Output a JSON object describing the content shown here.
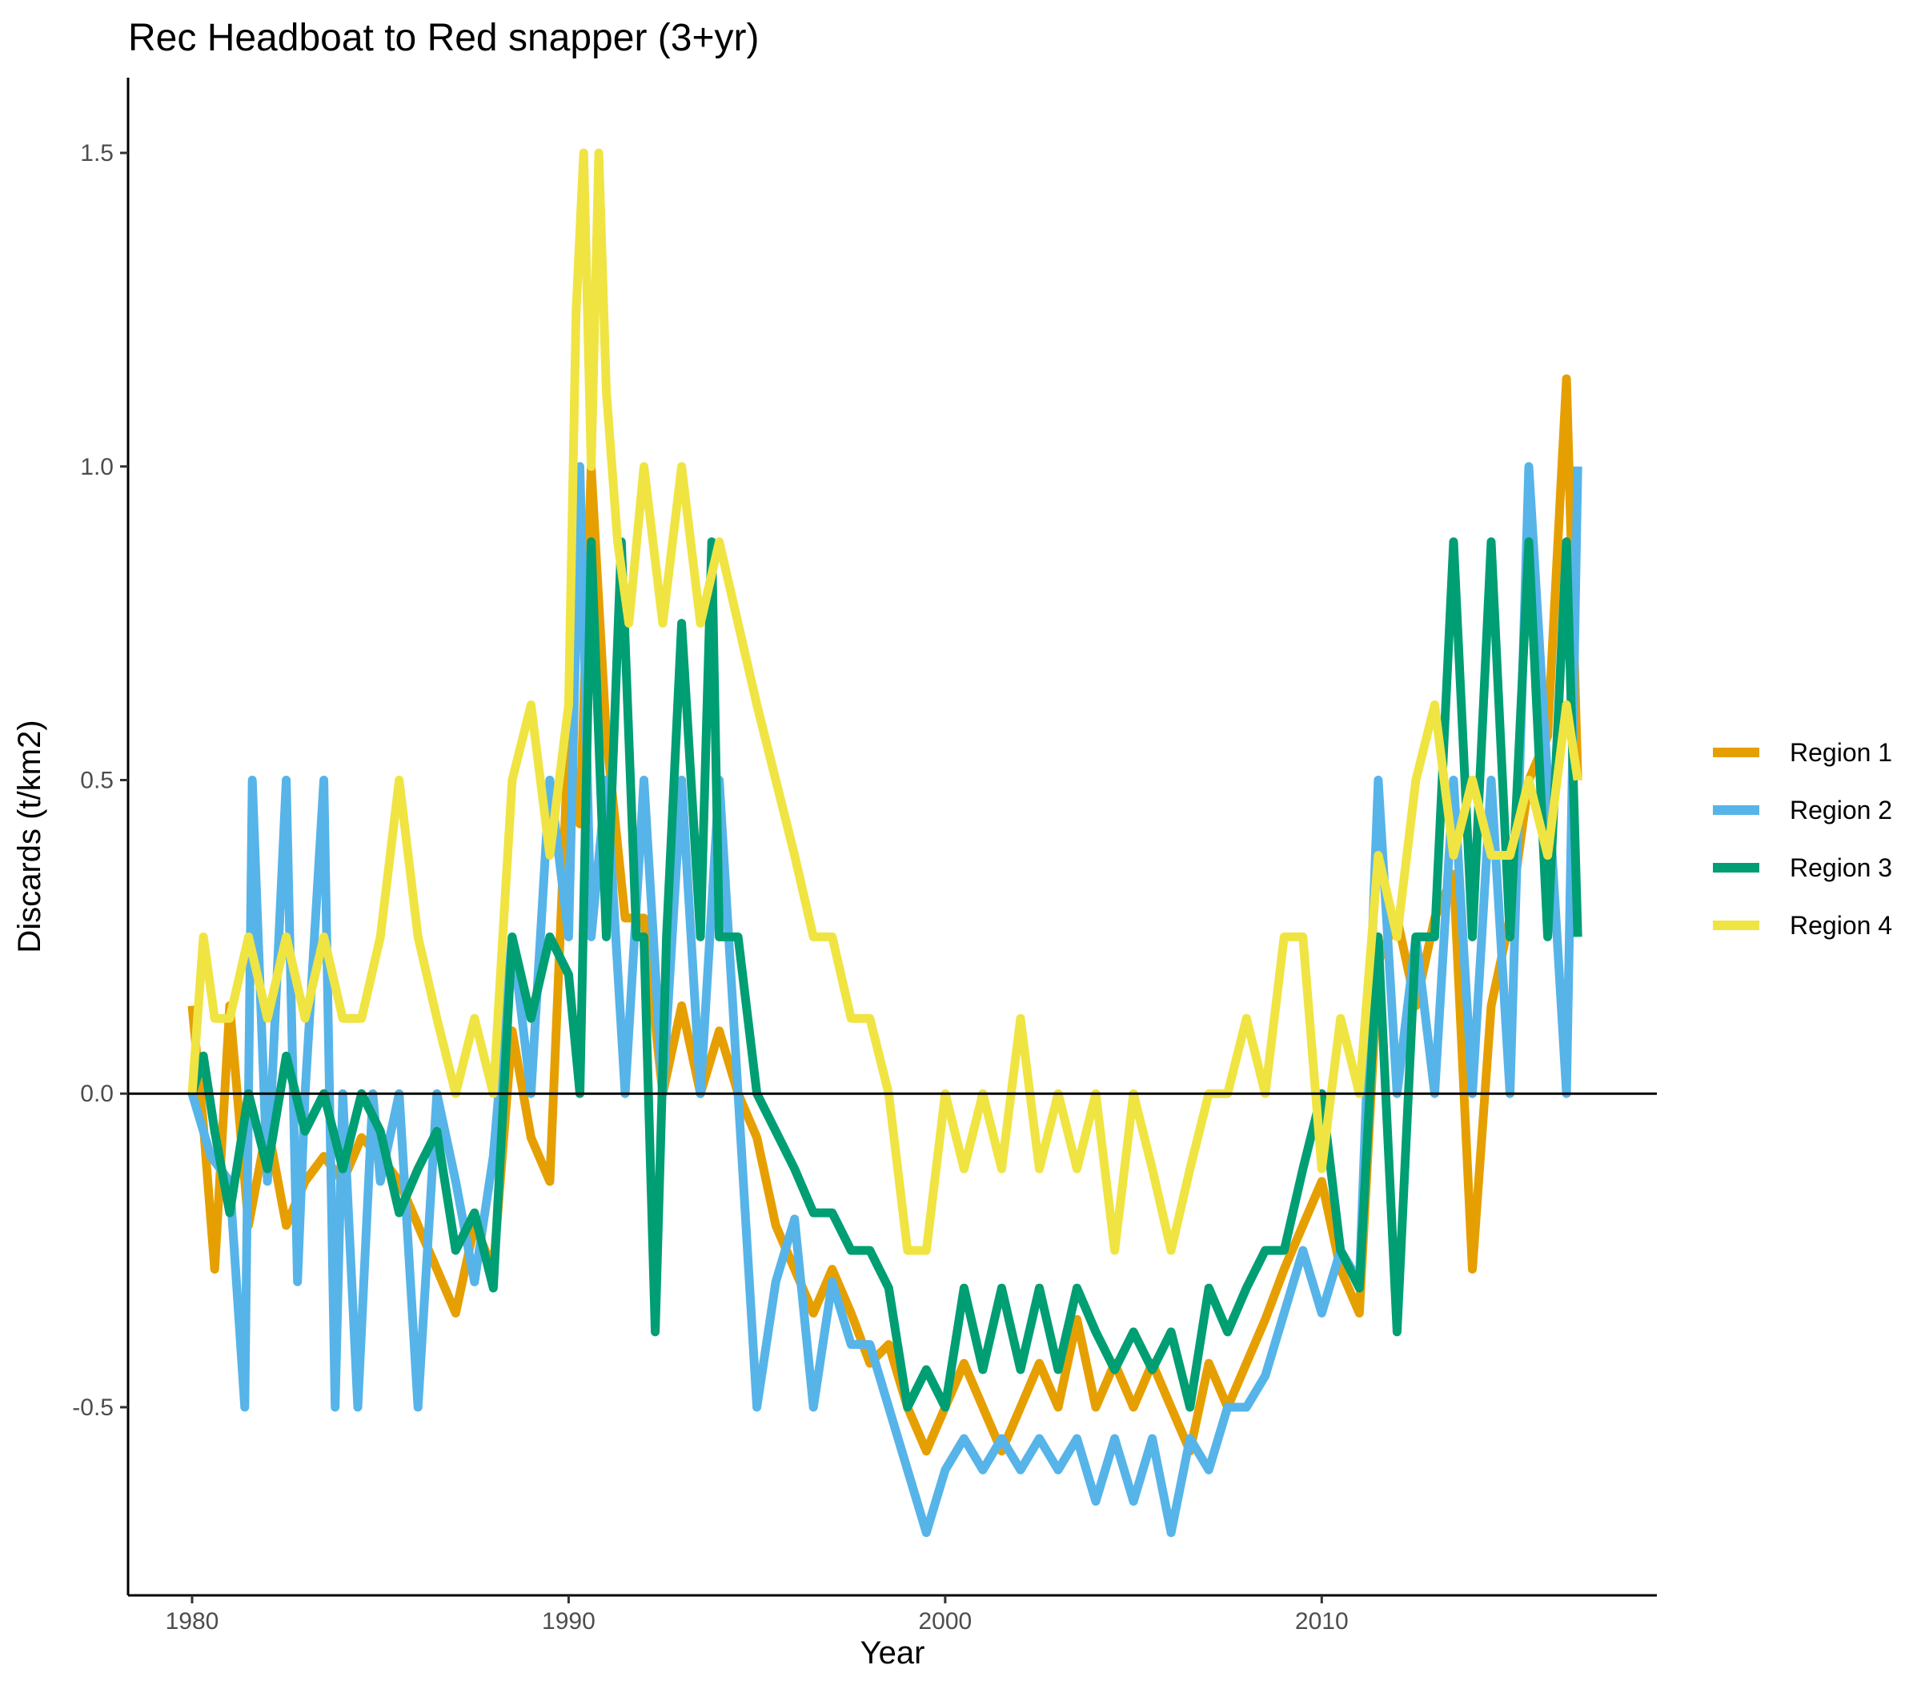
{
  "chart_data": {
    "type": "line",
    "title": "Rec Headboat to Red snapper (3+yr)",
    "xlabel": "Year",
    "ylabel": "Discards (t/km2)",
    "xlim": [
      1978.3,
      2018.9
    ],
    "ylim": [
      -0.8,
      1.62
    ],
    "x_ticks": [
      "1980",
      "1990",
      "2000",
      "2010"
    ],
    "y_ticks": [
      "-0.5",
      "0.0",
      "0.5",
      "1.0",
      "1.5"
    ],
    "reference_line_y": 0,
    "grid": false,
    "legend_position": "right",
    "series": [
      {
        "name": "Region 1",
        "color": "#E69F00",
        "x": [
          1980.0,
          1980.3,
          1980.6,
          1981.0,
          1981.5,
          1982.0,
          1982.5,
          1983.0,
          1983.5,
          1984.0,
          1984.5,
          1985.0,
          1985.5,
          1986.0,
          1986.5,
          1987.0,
          1987.5,
          1988.0,
          1988.5,
          1989.0,
          1989.5,
          1990.0,
          1990.3,
          1990.6,
          1991.0,
          1991.5,
          1992.0,
          1992.5,
          1993.0,
          1993.5,
          1994.0,
          1994.5,
          1995.0,
          1995.5,
          1996.0,
          1996.5,
          1997.0,
          1997.5,
          1998.0,
          1998.5,
          1999.0,
          1999.5,
          2000.0,
          2000.5,
          2001.0,
          2001.5,
          2002.0,
          2002.5,
          2003.0,
          2003.5,
          2004.0,
          2004.5,
          2005.0,
          2005.5,
          2006.0,
          2006.5,
          2007.0,
          2007.5,
          2008.0,
          2008.5,
          2009.0,
          2009.5,
          2010.0,
          2010.5,
          2011.0,
          2011.5,
          2012.0,
          2012.5,
          2013.0,
          2013.5,
          2014.0,
          2014.5,
          2015.0,
          2015.5,
          2016.0,
          2016.5,
          2016.8
        ],
        "y": [
          0.14,
          -0.05,
          -0.28,
          0.14,
          -0.21,
          -0.05,
          -0.21,
          -0.14,
          -0.1,
          -0.14,
          -0.07,
          -0.1,
          -0.14,
          -0.21,
          -0.28,
          -0.35,
          -0.21,
          -0.28,
          0.1,
          -0.07,
          -0.14,
          0.57,
          0.43,
          1.0,
          0.57,
          0.28,
          0.28,
          0.0,
          0.14,
          0.0,
          0.1,
          0.0,
          -0.07,
          -0.21,
          -0.28,
          -0.35,
          -0.28,
          -0.35,
          -0.43,
          -0.4,
          -0.5,
          -0.57,
          -0.5,
          -0.43,
          -0.5,
          -0.57,
          -0.5,
          -0.43,
          -0.5,
          -0.36,
          -0.5,
          -0.43,
          -0.5,
          -0.43,
          -0.5,
          -0.57,
          -0.43,
          -0.5,
          -0.43,
          -0.36,
          -0.28,
          -0.21,
          -0.14,
          -0.28,
          -0.35,
          0.21,
          0.28,
          0.14,
          0.28,
          0.35,
          -0.28,
          0.14,
          0.28,
          0.5,
          0.57,
          1.14,
          0.5
        ]
      },
      {
        "name": "Region 2",
        "color": "#56B4E9",
        "x": [
          1980.0,
          1980.5,
          1981.0,
          1981.4,
          1981.6,
          1982.0,
          1982.5,
          1982.8,
          1983.0,
          1983.5,
          1983.8,
          1984.0,
          1984.4,
          1984.8,
          1985.0,
          1985.5,
          1986.0,
          1986.5,
          1987.0,
          1987.5,
          1988.0,
          1988.5,
          1989.0,
          1989.5,
          1990.0,
          1990.3,
          1990.6,
          1991.0,
          1991.5,
          1992.0,
          1992.5,
          1993.0,
          1993.5,
          1994.0,
          1994.5,
          1995.0,
          1995.5,
          1996.0,
          1996.5,
          1997.0,
          1997.5,
          1998.0,
          1998.5,
          1999.0,
          1999.5,
          2000.0,
          2000.5,
          2001.0,
          2001.5,
          2002.0,
          2002.5,
          2003.0,
          2003.5,
          2004.0,
          2004.5,
          2005.0,
          2005.5,
          2006.0,
          2006.5,
          2007.0,
          2007.5,
          2008.0,
          2008.5,
          2009.0,
          2009.5,
          2010.0,
          2010.5,
          2011.0,
          2011.5,
          2012.0,
          2012.5,
          2013.0,
          2013.5,
          2014.0,
          2014.5,
          2015.0,
          2015.5,
          2016.0,
          2016.5,
          2016.8
        ],
        "y": [
          0.0,
          -0.1,
          -0.14,
          -0.5,
          0.5,
          -0.14,
          0.5,
          -0.3,
          0.0,
          0.5,
          -0.5,
          0.0,
          -0.5,
          0.0,
          -0.14,
          0.0,
          -0.5,
          0.0,
          -0.14,
          -0.3,
          -0.1,
          0.25,
          0.0,
          0.5,
          0.25,
          1.0,
          0.25,
          0.5,
          0.0,
          0.5,
          0.0,
          0.5,
          0.0,
          0.5,
          0.0,
          -0.5,
          -0.3,
          -0.2,
          -0.5,
          -0.3,
          -0.4,
          -0.4,
          -0.5,
          -0.6,
          -0.7,
          -0.6,
          -0.55,
          -0.6,
          -0.55,
          -0.6,
          -0.55,
          -0.6,
          -0.55,
          -0.65,
          -0.55,
          -0.65,
          -0.55,
          -0.7,
          -0.55,
          -0.6,
          -0.5,
          -0.5,
          -0.45,
          -0.35,
          -0.25,
          -0.35,
          -0.25,
          -0.3,
          0.5,
          0.0,
          0.25,
          0.0,
          0.5,
          0.0,
          0.5,
          0.0,
          1.0,
          0.5,
          0.0,
          1.0
        ]
      },
      {
        "name": "Region 3",
        "color": "#009E73",
        "x": [
          1980.0,
          1980.3,
          1980.6,
          1981.0,
          1981.5,
          1982.0,
          1982.5,
          1983.0,
          1983.5,
          1984.0,
          1984.5,
          1985.0,
          1985.5,
          1986.0,
          1986.5,
          1987.0,
          1987.5,
          1988.0,
          1988.5,
          1989.0,
          1989.5,
          1990.0,
          1990.3,
          1990.6,
          1991.0,
          1991.4,
          1991.8,
          1992.0,
          1992.3,
          1992.6,
          1993.0,
          1993.5,
          1993.8,
          1994.0,
          1994.5,
          1995.0,
          1995.5,
          1996.0,
          1996.5,
          1997.0,
          1997.5,
          1998.0,
          1998.5,
          1999.0,
          1999.5,
          2000.0,
          2000.5,
          2001.0,
          2001.5,
          2002.0,
          2002.5,
          2003.0,
          2003.5,
          2004.0,
          2004.5,
          2005.0,
          2005.5,
          2006.0,
          2006.5,
          2007.0,
          2007.5,
          2008.0,
          2008.5,
          2009.0,
          2009.5,
          2010.0,
          2010.5,
          2011.0,
          2011.5,
          2012.0,
          2012.5,
          2013.0,
          2013.5,
          2014.0,
          2014.5,
          2015.0,
          2015.5,
          2016.0,
          2016.5,
          2016.8
        ],
        "y": [
          0.0,
          0.06,
          -0.06,
          -0.19,
          0.0,
          -0.12,
          0.06,
          -0.06,
          0.0,
          -0.12,
          0.0,
          -0.06,
          -0.19,
          -0.12,
          -0.06,
          -0.25,
          -0.19,
          -0.31,
          0.25,
          0.12,
          0.25,
          0.19,
          0.0,
          0.88,
          0.25,
          0.88,
          0.25,
          0.25,
          -0.38,
          0.25,
          0.75,
          0.25,
          0.88,
          0.25,
          0.25,
          0.0,
          -0.06,
          -0.12,
          -0.19,
          -0.19,
          -0.25,
          -0.25,
          -0.31,
          -0.5,
          -0.44,
          -0.5,
          -0.31,
          -0.44,
          -0.31,
          -0.44,
          -0.31,
          -0.44,
          -0.31,
          -0.38,
          -0.44,
          -0.38,
          -0.44,
          -0.38,
          -0.5,
          -0.31,
          -0.38,
          -0.31,
          -0.25,
          -0.25,
          -0.12,
          0.0,
          -0.25,
          -0.31,
          0.25,
          -0.38,
          0.25,
          0.25,
          0.88,
          0.25,
          0.88,
          0.25,
          0.88,
          0.25,
          0.88,
          0.25
        ]
      },
      {
        "name": "Region 4",
        "color": "#F0E442",
        "x": [
          1980.0,
          1980.3,
          1980.6,
          1981.0,
          1981.5,
          1982.0,
          1982.5,
          1983.0,
          1983.5,
          1984.0,
          1984.5,
          1985.0,
          1985.5,
          1986.0,
          1986.5,
          1987.0,
          1987.5,
          1988.0,
          1988.5,
          1989.0,
          1989.5,
          1990.0,
          1990.2,
          1990.4,
          1990.6,
          1990.8,
          1991.0,
          1991.3,
          1991.6,
          1992.0,
          1992.5,
          1993.0,
          1993.5,
          1994.0,
          1994.5,
          1995.0,
          1995.5,
          1996.0,
          1996.5,
          1997.0,
          1997.5,
          1998.0,
          1998.5,
          1999.0,
          1999.5,
          2000.0,
          2000.5,
          2001.0,
          2001.5,
          2002.0,
          2002.5,
          2003.0,
          2003.5,
          2004.0,
          2004.5,
          2005.0,
          2005.5,
          2006.0,
          2006.5,
          2007.0,
          2007.5,
          2008.0,
          2008.5,
          2009.0,
          2009.5,
          2010.0,
          2010.5,
          2011.0,
          2011.5,
          2012.0,
          2012.5,
          2013.0,
          2013.5,
          2014.0,
          2014.5,
          2015.0,
          2015.5,
          2016.0,
          2016.5,
          2016.8
        ],
        "y": [
          0.0,
          0.25,
          0.12,
          0.12,
          0.25,
          0.12,
          0.25,
          0.12,
          0.25,
          0.12,
          0.12,
          0.25,
          0.5,
          0.25,
          0.12,
          0.0,
          0.12,
          0.0,
          0.5,
          0.62,
          0.38,
          0.62,
          1.25,
          1.5,
          1.0,
          1.5,
          1.12,
          0.88,
          0.75,
          1.0,
          0.75,
          1.0,
          0.75,
          0.88,
          0.75,
          0.62,
          0.5,
          0.38,
          0.25,
          0.25,
          0.12,
          0.12,
          0.0,
          -0.25,
          -0.25,
          0.0,
          -0.12,
          0.0,
          -0.12,
          0.12,
          -0.12,
          0.0,
          -0.12,
          0.0,
          -0.25,
          0.0,
          -0.12,
          -0.25,
          -0.12,
          0.0,
          0.0,
          0.12,
          0.0,
          0.25,
          0.25,
          -0.12,
          0.12,
          0.0,
          0.38,
          0.25,
          0.5,
          0.62,
          0.38,
          0.5,
          0.38,
          0.38,
          0.5,
          0.38,
          0.62,
          0.5
        ]
      }
    ]
  }
}
